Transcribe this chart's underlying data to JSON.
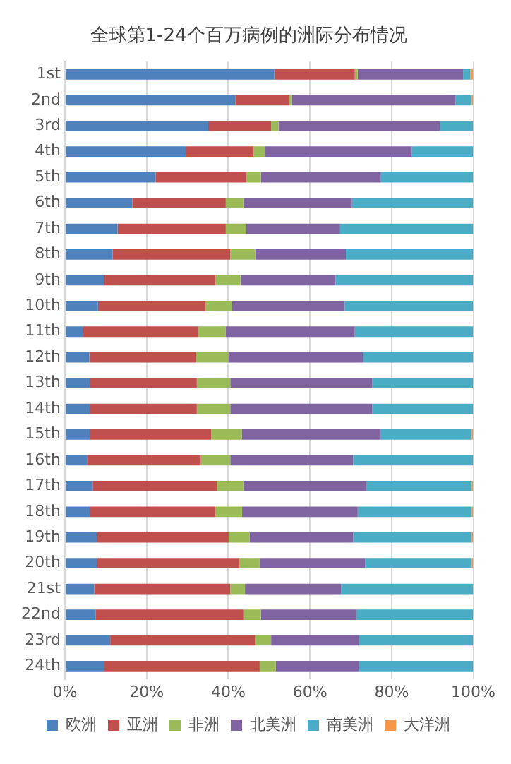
{
  "chart_data": {
    "type": "bar",
    "orientation": "horizontal",
    "stacked": true,
    "title": "全球第1-24个百万病例的洲际分布情况",
    "categories": [
      "1st",
      "2nd",
      "3rd",
      "4th",
      "5th",
      "6th",
      "7th",
      "8th",
      "9th",
      "10th",
      "11th",
      "12th",
      "13th",
      "14th",
      "15th",
      "16th",
      "17th",
      "18th",
      "19th",
      "20th",
      "21st",
      "22nd",
      "23rd",
      "24th"
    ],
    "series": [
      {
        "name": "欧洲",
        "color": "#4f81bd",
        "values": [
          51.3,
          41.8,
          35.1,
          29.7,
          22.2,
          16.5,
          12.9,
          11.7,
          9.6,
          8.1,
          4.5,
          6.0,
          6.1,
          6.1,
          6.1,
          5.4,
          6.8,
          6.1,
          7.9,
          7.9,
          7.2,
          7.5,
          11.1,
          9.7
        ]
      },
      {
        "name": "亚洲",
        "color": "#c0504d",
        "values": [
          19.7,
          13.0,
          15.4,
          16.5,
          22.2,
          22.9,
          26.5,
          28.8,
          27.3,
          26.3,
          28.1,
          26.0,
          26.2,
          26.2,
          29.7,
          27.9,
          30.5,
          30.8,
          32.2,
          34.8,
          33.3,
          36.2,
          35.5,
          38.0
        ]
      },
      {
        "name": "非洲",
        "color": "#9bbb59",
        "values": [
          0.7,
          0.8,
          1.8,
          2.9,
          3.6,
          4.3,
          5.0,
          6.1,
          6.1,
          6.5,
          6.8,
          8.0,
          8.2,
          8.2,
          7.5,
          7.2,
          6.4,
          6.5,
          5.1,
          5.0,
          3.6,
          4.3,
          3.9,
          3.9
        ]
      },
      {
        "name": "北美洲",
        "color": "#8064a2",
        "values": [
          25.8,
          40.1,
          39.5,
          35.8,
          29.4,
          26.6,
          23.0,
          22.2,
          23.3,
          27.6,
          31.6,
          33.0,
          34.8,
          34.8,
          34.1,
          30.1,
          30.1,
          28.3,
          25.4,
          25.8,
          23.6,
          23.3,
          21.5,
          20.4
        ]
      },
      {
        "name": "南美洲",
        "color": "#4bacc6",
        "values": [
          1.8,
          3.9,
          8.2,
          15.1,
          22.6,
          29.7,
          32.6,
          31.2,
          33.7,
          31.5,
          29.0,
          27.0,
          24.7,
          24.7,
          22.2,
          29.4,
          25.8,
          27.9,
          29.0,
          26.1,
          32.3,
          28.7,
          28.0,
          28.0
        ]
      },
      {
        "name": "大洋洲",
        "color": "#f79646",
        "values": [
          0.7,
          0.4,
          0,
          0,
          0,
          0,
          0,
          0,
          0,
          0,
          0,
          0,
          0,
          0,
          0.4,
          0,
          0.4,
          0.4,
          0.4,
          0.4,
          0,
          0,
          0,
          0
        ]
      }
    ],
    "xlim": [
      0,
      100
    ],
    "xticks": [
      {
        "value": 0,
        "label": "0%"
      },
      {
        "value": 20,
        "label": "20%"
      },
      {
        "value": 40,
        "label": "40%"
      },
      {
        "value": 60,
        "label": "60%"
      },
      {
        "value": 80,
        "label": "80%"
      },
      {
        "value": 100,
        "label": "100%"
      }
    ],
    "grid": "x",
    "legend": "bottom"
  }
}
